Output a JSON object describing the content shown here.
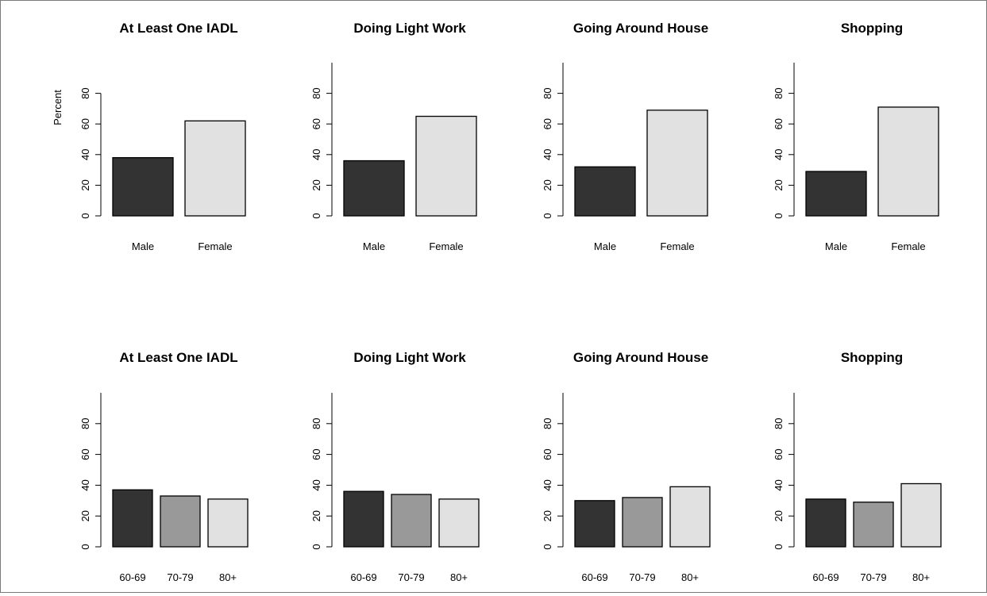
{
  "colors": {
    "dark": "#333333",
    "mid": "#999999",
    "light": "#e1e1e1",
    "axis": "#000000"
  },
  "chart_data": [
    {
      "type": "bar",
      "title": "At Least One IADL",
      "ylabel": "Percent",
      "xlabel": "",
      "categories": [
        "Male",
        "Female"
      ],
      "values": [
        38,
        62
      ],
      "yticks": [
        0,
        20,
        40,
        60,
        80
      ],
      "ylim": [
        0,
        80
      ]
    },
    {
      "type": "bar",
      "title": "Doing Light Work",
      "ylabel": "",
      "xlabel": "",
      "categories": [
        "Male",
        "Female"
      ],
      "values": [
        36,
        65
      ],
      "yticks": [
        0,
        20,
        40,
        60,
        80
      ],
      "ylim": [
        0,
        100
      ]
    },
    {
      "type": "bar",
      "title": "Going Around House",
      "ylabel": "",
      "xlabel": "",
      "categories": [
        "Male",
        "Female"
      ],
      "values": [
        32,
        69
      ],
      "yticks": [
        0,
        20,
        40,
        60,
        80
      ],
      "ylim": [
        0,
        100
      ]
    },
    {
      "type": "bar",
      "title": "Shopping",
      "ylabel": "",
      "xlabel": "",
      "categories": [
        "Male",
        "Female"
      ],
      "values": [
        29,
        71
      ],
      "yticks": [
        0,
        20,
        40,
        60,
        80
      ],
      "ylim": [
        0,
        100
      ]
    },
    {
      "type": "bar",
      "title": "At Least One IADL",
      "ylabel": "",
      "xlabel": "",
      "categories": [
        "60-69",
        "70-79",
        "80+"
      ],
      "values": [
        37,
        33,
        31
      ],
      "yticks": [
        0,
        20,
        40,
        60,
        80
      ],
      "ylim": [
        0,
        100
      ]
    },
    {
      "type": "bar",
      "title": "Doing Light Work",
      "ylabel": "",
      "xlabel": "",
      "categories": [
        "60-69",
        "70-79",
        "80+"
      ],
      "values": [
        36,
        34,
        31
      ],
      "yticks": [
        0,
        20,
        40,
        60,
        80
      ],
      "ylim": [
        0,
        100
      ]
    },
    {
      "type": "bar",
      "title": "Going Around House",
      "ylabel": "",
      "xlabel": "",
      "categories": [
        "60-69",
        "70-79",
        "80+"
      ],
      "values": [
        30,
        32,
        39
      ],
      "yticks": [
        0,
        20,
        40,
        60,
        80
      ],
      "ylim": [
        0,
        100
      ]
    },
    {
      "type": "bar",
      "title": "Shopping",
      "ylabel": "",
      "xlabel": "",
      "categories": [
        "60-69",
        "70-79",
        "80+"
      ],
      "values": [
        31,
        29,
        41
      ],
      "yticks": [
        0,
        20,
        40,
        60,
        80
      ],
      "ylim": [
        0,
        100
      ]
    }
  ]
}
